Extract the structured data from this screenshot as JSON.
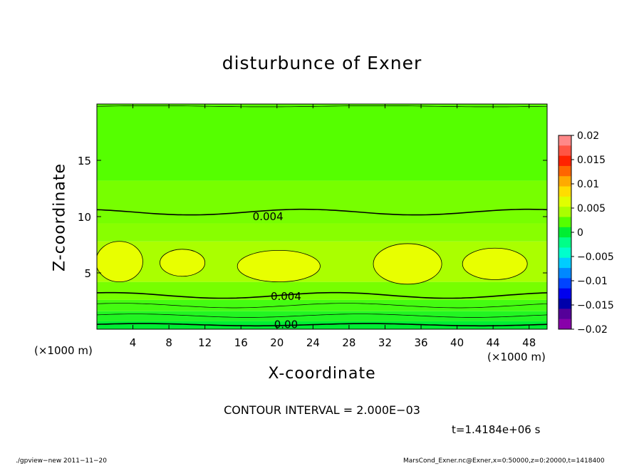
{
  "chart_data": {
    "type": "heatmap",
    "title": "disturbunce of Exner",
    "xlabel": "X-coordinate",
    "ylabel": "Z-coordinate",
    "x_unit": "(×1000 m)",
    "xlim": [
      0,
      50
    ],
    "ylim": [
      0,
      20
    ],
    "x_ticks": [
      4,
      8,
      12,
      16,
      20,
      24,
      28,
      32,
      36,
      40,
      44,
      48
    ],
    "y_ticks": [
      5,
      10,
      15
    ],
    "colorbar": {
      "ticks": [
        "0.02",
        "0.015",
        "0.01",
        "0.005",
        "0",
        "−0.005",
        "−0.01",
        "−0.015",
        "−0.02"
      ],
      "colors_top_to_bottom": [
        "#ff8888",
        "#ff5544",
        "#ff2200",
        "#ff6600",
        "#ffaa00",
        "#ffdd00",
        "#e0ff00",
        "#aaff00",
        "#55ff00",
        "#00ee33",
        "#00ff88",
        "#00ffcc",
        "#00ccff",
        "#0088ff",
        "#0044ff",
        "#0000ee",
        "#0000aa",
        "#550099",
        "#8800aa"
      ],
      "range": [
        -0.02,
        0.02
      ]
    },
    "contour_interval": 0.002,
    "contour_labels": [
      {
        "text": "0.004",
        "x": 19,
        "z": 10.0
      },
      {
        "text": "0.004",
        "x": 21,
        "z": 2.9
      },
      {
        "text": "0.00",
        "x": 21,
        "z": 0.4
      }
    ],
    "high_regions": [
      {
        "x_center": 2.5,
        "z_center": 6.0,
        "x_half": 2.6,
        "z_half": 1.8,
        "value": 0.0075
      },
      {
        "x_center": 9.5,
        "z_center": 5.9,
        "x_half": 2.5,
        "z_half": 1.2,
        "value": 0.0075
      },
      {
        "x_center": 20.2,
        "z_center": 5.6,
        "x_half": 4.6,
        "z_half": 1.4,
        "value": 0.0075
      },
      {
        "x_center": 34.5,
        "z_center": 5.8,
        "x_half": 3.8,
        "z_half": 1.8,
        "value": 0.0075
      },
      {
        "x_center": 44.2,
        "z_center": 5.8,
        "x_half": 3.6,
        "z_half": 1.4,
        "value": 0.0075
      }
    ],
    "bands": [
      {
        "z_min": 0.0,
        "z_max": 0.7,
        "color": "#00ee33"
      },
      {
        "z_min": 0.7,
        "z_max": 1.6,
        "color": "#22f522"
      },
      {
        "z_min": 1.6,
        "z_max": 2.6,
        "color": "#44fc11"
      },
      {
        "z_min": 2.6,
        "z_max": 4.2,
        "color": "#77ff00"
      },
      {
        "z_min": 4.2,
        "z_max": 7.8,
        "color": "#aaff00"
      },
      {
        "z_min": 7.8,
        "z_max": 9.4,
        "color": "#88ff00"
      },
      {
        "z_min": 9.4,
        "z_max": 13.2,
        "color": "#77ff00"
      },
      {
        "z_min": 13.2,
        "z_max": 20.0,
        "color": "#55ff00"
      }
    ]
  },
  "labels": {
    "x_unit_left": "(×1000 m)",
    "x_unit_right": "(×1000 m)",
    "contour_interval": "CONTOUR INTERVAL = 2.000E−03",
    "time": "t=1.4184e+06 s",
    "footer_left": "./gpview−new  2011−11−20",
    "footer_right": "MarsCond_Exner.nc@Exner,x=0:50000,z=0:20000,t=1418400"
  }
}
